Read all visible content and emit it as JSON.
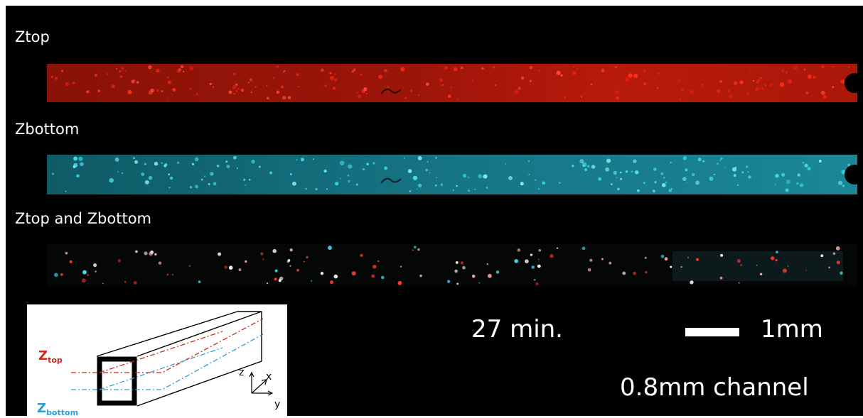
{
  "panels": [
    {
      "label": "Ztop",
      "channel": "red",
      "color": "#e0210c"
    },
    {
      "label": "Zbottom",
      "channel": "cyan",
      "color": "#1fb8c9"
    },
    {
      "label": "Ztop and Zbottom",
      "channel": "merged"
    }
  ],
  "annotations": {
    "time": "27 min.",
    "scale": "1mm",
    "channel_size": "0.8mm channel"
  },
  "inset": {
    "z_top_letter": "Z",
    "z_top_sub": "top",
    "z_bottom_letter": "Z",
    "z_bottom_sub": "bottom",
    "axis_z": "z",
    "axis_x": "x",
    "axis_y": "y",
    "top_color": "#cc2a1c",
    "bottom_color": "#2a9fd6"
  }
}
